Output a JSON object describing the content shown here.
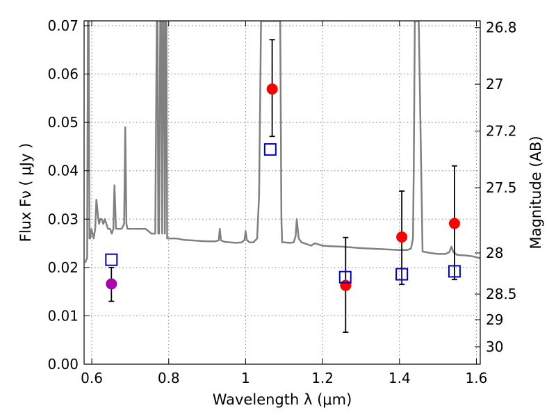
{
  "chart_data": {
    "type": "scatter",
    "title": "",
    "xlabel": "Wavelength  λ (μm)",
    "ylabel": "Flux  Fν  ( μJy )",
    "y2label": "Magnitude (AB)",
    "xlim": [
      0.58,
      1.61
    ],
    "ylim": [
      0.0,
      0.071
    ],
    "x_ticks": [
      {
        "value": 0.6,
        "label": "0.6"
      },
      {
        "value": 0.8,
        "label": "0.8"
      },
      {
        "value": 1.0,
        "label": "1"
      },
      {
        "value": 1.2,
        "label": "1.2"
      },
      {
        "value": 1.4,
        "label": "1.4"
      },
      {
        "value": 1.6,
        "label": "1.6"
      }
    ],
    "y_ticks": [
      {
        "value": 0.0,
        "label": "0.00"
      },
      {
        "value": 0.01,
        "label": "0.01"
      },
      {
        "value": 0.02,
        "label": "0.02"
      },
      {
        "value": 0.03,
        "label": "0.03"
      },
      {
        "value": 0.04,
        "label": "0.04"
      },
      {
        "value": 0.05,
        "label": "0.05"
      },
      {
        "value": 0.06,
        "label": "0.06"
      },
      {
        "value": 0.07,
        "label": "0.07"
      }
    ],
    "y2_ticks": [
      {
        "flux": 0.0696,
        "label": "26.8"
      },
      {
        "flux": 0.0579,
        "label": "27"
      },
      {
        "flux": 0.0482,
        "label": "27.2"
      },
      {
        "flux": 0.0365,
        "label": "27.5"
      },
      {
        "flux": 0.023,
        "label": "28"
      },
      {
        "flux": 0.0145,
        "label": "28.5"
      },
      {
        "flux": 0.0092,
        "label": "29"
      },
      {
        "flux": 0.0036,
        "label": "30"
      }
    ],
    "grid": true,
    "series": [
      {
        "name": "model-spectrum",
        "kind": "line",
        "color": "#808080",
        "x": [
          0.583,
          0.588,
          0.59,
          0.592,
          0.594,
          0.596,
          0.599,
          0.602,
          0.605,
          0.609,
          0.612,
          0.617,
          0.619,
          0.622,
          0.626,
          0.63,
          0.634,
          0.638,
          0.642,
          0.648,
          0.652,
          0.656,
          0.659,
          0.663,
          0.668,
          0.672,
          0.678,
          0.684,
          0.687,
          0.69,
          0.693,
          0.697,
          0.705,
          0.715,
          0.725,
          0.74,
          0.755,
          0.765,
          0.769,
          0.771,
          0.773,
          0.775,
          0.778,
          0.78,
          0.783,
          0.785,
          0.787,
          0.79,
          0.792,
          0.794,
          0.796,
          0.798,
          0.8,
          0.803,
          0.81,
          0.82,
          0.84,
          0.86,
          0.88,
          0.9,
          0.92,
          0.93,
          0.933,
          0.936,
          0.945,
          0.96,
          0.975,
          0.99,
          0.997,
          1.0,
          1.003,
          1.01,
          1.02,
          1.03,
          1.035,
          1.04,
          1.045,
          1.085,
          1.09,
          1.093,
          1.095,
          1.1,
          1.115,
          1.125,
          1.13,
          1.133,
          1.138,
          1.145,
          1.16,
          1.17,
          1.18,
          1.2,
          1.22,
          1.25,
          1.3,
          1.35,
          1.4,
          1.42,
          1.43,
          1.435,
          1.437,
          1.44,
          1.445,
          1.45,
          1.46,
          1.48,
          1.5,
          1.52,
          1.53,
          1.535,
          1.54,
          1.55,
          1.57,
          1.59,
          1.61
        ],
        "y": [
          0.021,
          0.022,
          0.071,
          0.071,
          0.026,
          0.026,
          0.028,
          0.027,
          0.026,
          0.028,
          0.034,
          0.03,
          0.029,
          0.03,
          0.03,
          0.029,
          0.03,
          0.029,
          0.028,
          0.028,
          0.027,
          0.028,
          0.037,
          0.028,
          0.028,
          0.028,
          0.028,
          0.029,
          0.049,
          0.029,
          0.028,
          0.028,
          0.028,
          0.028,
          0.028,
          0.028,
          0.027,
          0.027,
          0.071,
          0.071,
          0.027,
          0.027,
          0.071,
          0.071,
          0.027,
          0.071,
          0.071,
          0.027,
          0.071,
          0.071,
          0.026,
          0.026,
          0.026,
          0.026,
          0.026,
          0.026,
          0.0257,
          0.0256,
          0.0255,
          0.0254,
          0.0254,
          0.0256,
          0.028,
          0.0256,
          0.0253,
          0.0252,
          0.0251,
          0.0252,
          0.0257,
          0.0275,
          0.0257,
          0.0252,
          0.0252,
          0.026,
          0.035,
          0.071,
          0.071,
          0.071,
          0.071,
          0.03,
          0.0252,
          0.0252,
          0.0251,
          0.0252,
          0.0265,
          0.03,
          0.026,
          0.0252,
          0.0248,
          0.0245,
          0.025,
          0.0245,
          0.0244,
          0.0243,
          0.024,
          0.0238,
          0.0236,
          0.0236,
          0.0239,
          0.026,
          0.04,
          0.071,
          0.071,
          0.071,
          0.0233,
          0.023,
          0.0228,
          0.0228,
          0.0232,
          0.0243,
          0.0232,
          0.0226,
          0.0225,
          0.0223,
          0.0219
        ]
      },
      {
        "name": "observed-flux",
        "kind": "scatter-errorbars",
        "color": "#ff0000",
        "points": [
          {
            "x": 1.069,
            "y": 0.0569,
            "err_low": 0.0471,
            "err_high": 0.0671
          },
          {
            "x": 1.26,
            "y": 0.0163,
            "err_low": 0.0066,
            "err_high": 0.0262
          },
          {
            "x": 1.406,
            "y": 0.0263,
            "err_low": 0.0165,
            "err_high": 0.0358
          },
          {
            "x": 1.543,
            "y": 0.0291,
            "err_low": 0.0175,
            "err_high": 0.041
          }
        ]
      },
      {
        "name": "upper-limit-flux",
        "kind": "scatter-errorbars",
        "color": "#aa00aa",
        "points": [
          {
            "x": 0.651,
            "y": 0.0166,
            "err_low": 0.013,
            "err_high": 0.02
          }
        ]
      },
      {
        "name": "model-bandpass-flux",
        "kind": "scatter-open-square",
        "color": "#0000cc",
        "points": [
          {
            "x": 0.651,
            "y": 0.0216
          },
          {
            "x": 1.064,
            "y": 0.0444
          },
          {
            "x": 1.259,
            "y": 0.018
          },
          {
            "x": 1.406,
            "y": 0.0186
          },
          {
            "x": 1.543,
            "y": 0.0192
          }
        ]
      }
    ]
  }
}
